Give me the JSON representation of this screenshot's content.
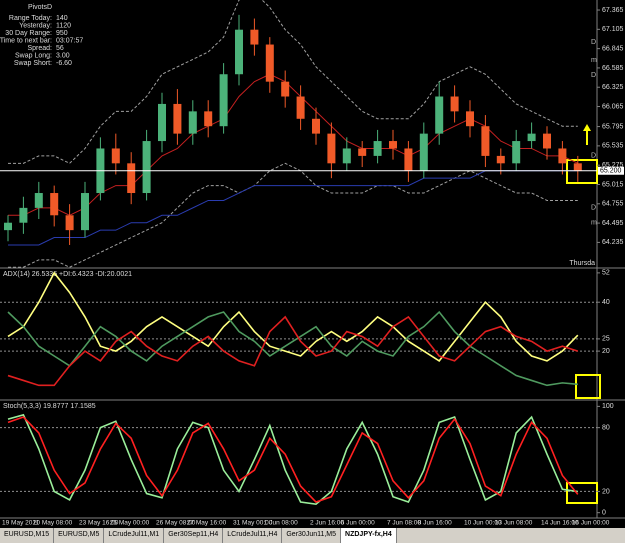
{
  "chart_data": [
    {
      "type": "candlestick",
      "categories": [
        "19 May 2011",
        null,
        "20 May 08:00",
        null,
        null,
        "23 May 16:00",
        null,
        "25 May 00:00",
        null,
        null,
        "26 May 08:00",
        null,
        "27 May 16:00",
        null,
        null,
        "31 May 00:00",
        null,
        "1 Jun 08:00",
        null,
        null,
        "2 Jun 16:00",
        null,
        "6 Jun 00:00",
        null,
        null,
        "7 Jun 08:00",
        null,
        "8 Jun 16:00",
        null,
        null,
        "10 Jun 00:00",
        null,
        "13 Jun 08:00",
        null,
        null,
        "14 Jun 16:00",
        null,
        "16 Jun 00:00"
      ],
      "open": [
        64.4,
        64.5,
        64.7,
        64.9,
        64.6,
        64.4,
        64.9,
        65.5,
        65.3,
        64.9,
        65.6,
        66.1,
        65.7,
        66.0,
        65.8,
        66.5,
        67.1,
        66.9,
        66.4,
        66.2,
        65.9,
        65.7,
        65.3,
        65.5,
        65.4,
        65.6,
        65.5,
        65.2,
        65.7,
        66.2,
        66.0,
        65.8,
        65.4,
        65.3,
        65.6,
        65.7,
        65.5,
        65.3
      ],
      "high": [
        64.6,
        64.85,
        65.05,
        65.0,
        64.75,
        65.05,
        65.65,
        65.7,
        65.45,
        65.75,
        66.25,
        66.3,
        66.15,
        66.15,
        66.65,
        67.3,
        67.25,
        67.0,
        66.55,
        66.35,
        66.05,
        65.85,
        65.65,
        65.6,
        65.75,
        65.75,
        65.6,
        65.85,
        66.4,
        66.35,
        66.15,
        65.95,
        65.5,
        65.75,
        65.85,
        65.8,
        65.6,
        65.4
      ],
      "low": [
        64.25,
        64.35,
        64.55,
        64.45,
        64.2,
        64.3,
        64.8,
        65.15,
        64.75,
        64.8,
        65.45,
        65.55,
        65.55,
        65.65,
        65.7,
        66.35,
        66.75,
        66.25,
        66.05,
        65.75,
        65.55,
        65.1,
        65.2,
        65.25,
        65.3,
        65.35,
        65.05,
        65.1,
        65.55,
        65.85,
        65.65,
        65.25,
        65.15,
        65.2,
        65.5,
        65.35,
        65.15,
        65.05
      ],
      "close": [
        64.5,
        64.7,
        64.9,
        64.6,
        64.4,
        64.9,
        65.5,
        65.3,
        64.9,
        65.6,
        66.1,
        65.7,
        66.0,
        65.8,
        66.5,
        67.1,
        66.9,
        66.4,
        66.2,
        65.9,
        65.7,
        65.3,
        65.5,
        65.4,
        65.6,
        65.5,
        65.2,
        65.7,
        66.2,
        66.0,
        65.8,
        65.4,
        65.3,
        65.6,
        65.7,
        65.5,
        65.3,
        65.2
      ],
      "up_color": "#4cb27a",
      "down_color": "#f05a28",
      "lines": [
        {
          "color": "#a0a0a0",
          "dash": true,
          "values": [
            65.3,
            65.3,
            65.4,
            65.4,
            65.3,
            65.5,
            65.8,
            66.0,
            66.0,
            66.2,
            66.5,
            66.6,
            66.7,
            66.8,
            67.0,
            67.5,
            67.6,
            67.4,
            67.1,
            66.9,
            66.6,
            66.4,
            66.2,
            66.0,
            65.9,
            65.9,
            65.9,
            66.1,
            66.4,
            66.5,
            66.6,
            66.5,
            66.3,
            66.1,
            66.0,
            65.9,
            65.8,
            65.8
          ]
        },
        {
          "color": "#a0a0a0",
          "dash": true,
          "values": [
            63.9,
            63.9,
            64.0,
            64.0,
            63.9,
            64.0,
            64.1,
            64.2,
            64.3,
            64.4,
            64.5,
            64.7,
            64.9,
            65.0,
            65.0,
            64.9,
            65.0,
            65.2,
            65.3,
            65.2,
            65.0,
            64.9,
            64.9,
            64.9,
            65.0,
            65.0,
            64.9,
            64.9,
            65.0,
            65.1,
            65.2,
            65.1,
            65.0,
            64.9,
            64.9,
            64.8,
            64.8,
            64.8
          ]
        },
        {
          "color": "#c42020",
          "dash": false,
          "values": [
            64.6,
            64.6,
            64.7,
            64.7,
            64.6,
            64.7,
            64.9,
            65.0,
            65.0,
            65.2,
            65.4,
            65.5,
            65.7,
            65.8,
            65.9,
            66.2,
            66.4,
            66.5,
            66.4,
            66.2,
            66.0,
            65.8,
            65.6,
            65.5,
            65.5,
            65.5,
            65.4,
            65.5,
            65.7,
            65.8,
            65.9,
            65.8,
            65.6,
            65.5,
            65.5,
            65.4,
            65.4,
            65.3
          ]
        },
        {
          "color": "#2a3cb0",
          "dash": false,
          "values": [
            64.2,
            64.2,
            64.2,
            64.3,
            64.3,
            64.3,
            64.4,
            64.4,
            64.5,
            64.5,
            64.6,
            64.6,
            64.7,
            64.8,
            64.8,
            64.9,
            65.0,
            65.0,
            65.0,
            65.0,
            65.0,
            65.0,
            65.0,
            65.0,
            65.0,
            65.0,
            65.0,
            65.1,
            65.1,
            65.1,
            65.1,
            65.2,
            65.2,
            65.2,
            65.2,
            65.2,
            65.2,
            65.2
          ]
        }
      ],
      "ylim": [
        63.89,
        67.5
      ],
      "yticks": [
        64.235,
        64.495,
        64.755,
        65.015,
        65.275,
        65.535,
        65.795,
        66.065,
        66.325,
        66.585,
        66.845,
        67.105,
        67.365
      ],
      "current_price": {
        "value": 65.2,
        "label": "65.200"
      },
      "pivot_labels": [
        {
          "value": 66.93,
          "label": "D"
        },
        {
          "value": 66.69,
          "label": "m"
        },
        {
          "value": 66.49,
          "label": "D"
        },
        {
          "value": 65.4,
          "label": "D"
        },
        {
          "value": 64.7,
          "label": "D"
        },
        {
          "value": 64.5,
          "label": "m"
        }
      ],
      "annotation": "Thursda",
      "grid": false
    },
    {
      "type": "line",
      "title": "ADX(14) 26.5336 +DI:6.4323 -DI:20.0021",
      "series": [
        {
          "color": "#ffff80",
          "values": [
            26,
            30,
            40,
            52,
            44,
            34,
            22,
            20,
            24,
            30,
            34,
            30,
            26,
            22,
            30,
            36,
            28,
            22,
            20,
            18,
            24,
            28,
            24,
            28,
            34,
            30,
            24,
            20,
            16,
            24,
            32,
            40,
            34,
            24,
            18,
            16,
            20,
            26.5
          ]
        },
        {
          "color": "#4f9a5f",
          "values": [
            36,
            30,
            22,
            18,
            14,
            22,
            30,
            26,
            20,
            16,
            22,
            26,
            30,
            34,
            36,
            28,
            24,
            18,
            22,
            26,
            30,
            22,
            18,
            24,
            20,
            18,
            26,
            30,
            36,
            28,
            22,
            18,
            14,
            10,
            8,
            6,
            7,
            6.4
          ]
        },
        {
          "color": "#e02020",
          "values": [
            10,
            8,
            6,
            6,
            14,
            20,
            16,
            24,
            28,
            22,
            18,
            16,
            22,
            26,
            20,
            16,
            14,
            28,
            34,
            24,
            18,
            20,
            28,
            26,
            22,
            30,
            34,
            26,
            18,
            16,
            22,
            28,
            30,
            26,
            24,
            20,
            22,
            20
          ]
        }
      ],
      "ylim": [
        0,
        54
      ],
      "yticks": [
        20,
        25,
        40,
        52
      ],
      "levels": [
        20,
        25,
        40
      ]
    },
    {
      "type": "line",
      "title": "Stoch(5,3,3) 19.8777 17.1585",
      "series": [
        {
          "color": "#9aee9a",
          "values": [
            88,
            92,
            60,
            20,
            12,
            40,
            80,
            86,
            50,
            18,
            14,
            60,
            85,
            80,
            40,
            20,
            50,
            82,
            40,
            10,
            8,
            20,
            60,
            85,
            55,
            15,
            10,
            40,
            85,
            90,
            50,
            12,
            20,
            75,
            90,
            55,
            22,
            19.9
          ]
        },
        {
          "color": "#ff2020",
          "values": [
            85,
            90,
            75,
            40,
            18,
            28,
            60,
            84,
            70,
            35,
            16,
            40,
            75,
            84,
            60,
            30,
            40,
            70,
            55,
            25,
            10,
            15,
            45,
            75,
            65,
            30,
            14,
            30,
            70,
            88,
            65,
            25,
            16,
            55,
            85,
            70,
            35,
            17.2
          ]
        }
      ],
      "ylim": [
        -5,
        106
      ],
      "yticks": [
        0,
        20,
        80,
        100
      ],
      "levels": [
        20,
        80
      ]
    }
  ],
  "info": {
    "title": "PivotsD",
    "rows": [
      [
        "Range Today:",
        "140"
      ],
      [
        "Yesterday:",
        "1120"
      ],
      [
        "30 Day Range:",
        "950"
      ],
      [
        "Time to next bar:",
        "03:07:57"
      ],
      [
        "Spread:",
        "56"
      ],
      [
        "Swap Long:",
        "3.00"
      ],
      [
        "Swap Short:",
        "-6.60"
      ]
    ]
  },
  "tabs": [
    "EURUSD,M15",
    "EURUSD,M5",
    "LCrudeJul11,M1",
    "Ger30Sep11,H4",
    "LCrudeJul11,H4",
    "Ger30Jun11,M5",
    "NZDJPY-fx,H4"
  ]
}
